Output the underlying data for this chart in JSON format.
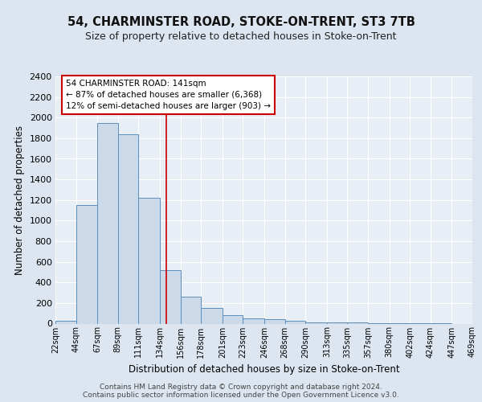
{
  "title1": "54, CHARMINSTER ROAD, STOKE-ON-TRENT, ST3 7TB",
  "title2": "Size of property relative to detached houses in Stoke-on-Trent",
  "xlabel": "Distribution of detached houses by size in Stoke-on-Trent",
  "ylabel": "Number of detached properties",
  "bin_edges": [
    22,
    44,
    67,
    89,
    111,
    134,
    156,
    178,
    201,
    223,
    246,
    268,
    290,
    313,
    335,
    357,
    380,
    402,
    424,
    447,
    469
  ],
  "bin_labels": [
    "22sqm",
    "44sqm",
    "67sqm",
    "89sqm",
    "111sqm",
    "134sqm",
    "156sqm",
    "178sqm",
    "201sqm",
    "223sqm",
    "246sqm",
    "268sqm",
    "290sqm",
    "313sqm",
    "335sqm",
    "357sqm",
    "380sqm",
    "402sqm",
    "424sqm",
    "447sqm",
    "469sqm"
  ],
  "bar_heights": [
    30,
    1150,
    1950,
    1840,
    1220,
    520,
    260,
    155,
    80,
    50,
    40,
    25,
    15,
    10,
    8,
    5,
    3,
    2,
    1,
    0,
    0
  ],
  "bar_color": "#ccd9e8",
  "bar_edge_color": "#5b8fbe",
  "property_size": 141,
  "red_line_x": 141,
  "vline_color": "#cc0000",
  "annotation_text": "54 CHARMINSTER ROAD: 141sqm\n← 87% of detached houses are smaller (6,368)\n12% of semi-detached houses are larger (903) →",
  "annotation_box_color": "#ffffff",
  "annotation_border_color": "#cc0000",
  "ylim": [
    0,
    2400
  ],
  "yticks": [
    0,
    200,
    400,
    600,
    800,
    1000,
    1200,
    1400,
    1600,
    1800,
    2000,
    2200,
    2400
  ],
  "footer1": "Contains HM Land Registry data © Crown copyright and database right 2024.",
  "footer2": "Contains public sector information licensed under the Open Government Licence v3.0.",
  "bg_color": "#dde6f0",
  "plot_bg_color": "#e8eef5"
}
